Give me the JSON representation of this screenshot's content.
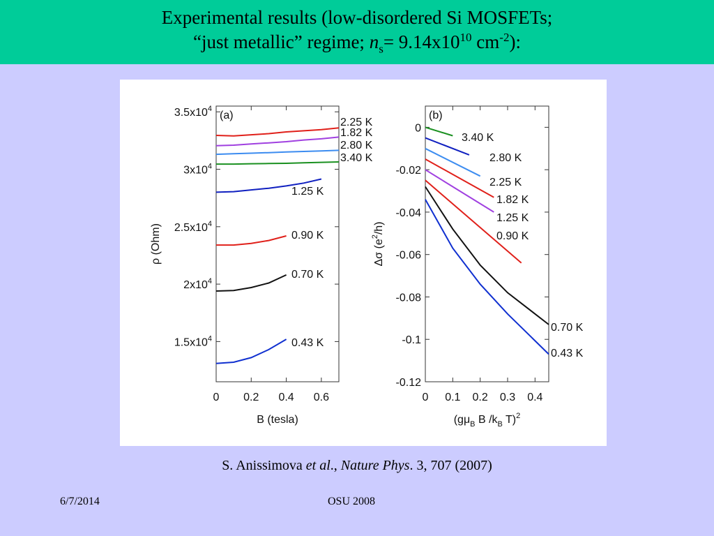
{
  "slide": {
    "title_line1": "Experimental results (low-disordered Si MOSFETs;",
    "title_line2_prefix": "“just metallic” regime; ",
    "title_ns_n": "n",
    "title_ns_sub": "s",
    "title_line2_mid": "= 9.14x10",
    "title_exp10": "10",
    "title_unit": " cm",
    "title_unit_exp": "-2",
    "title_line2_end": "):",
    "citation_author": "S. Anissimova ",
    "citation_etal": "et al",
    "citation_comma": "., ",
    "citation_journal": "Nature Phys",
    "citation_rest": ". 3, 707 (2007)",
    "footer_date": "6/7/2014",
    "footer_center": "OSU 2008",
    "colors": {
      "background": "#ccccff",
      "title_bar": "#00cc99"
    }
  },
  "chart_data": [
    {
      "type": "line",
      "panel_label": "(a)",
      "xlabel": "B (tesla)",
      "ylabel": "ρ (Ohm)",
      "xlim": [
        0,
        0.7
      ],
      "ylim": [
        11500,
        35500
      ],
      "x_ticks": [
        "0",
        "0.2",
        "0.4",
        "0.6"
      ],
      "x_tick_values": [
        0,
        0.2,
        0.4,
        0.6
      ],
      "y_ticks": [
        "1.5x10^4",
        "2x10^4",
        "2.5x10^4",
        "3x10^4",
        "3.5x10^4"
      ],
      "y_tick_values": [
        15000,
        20000,
        25000,
        30000,
        35000
      ],
      "series": [
        {
          "name": "2.25 K",
          "color": "#e0201a",
          "x": [
            0,
            0.1,
            0.2,
            0.3,
            0.4,
            0.5,
            0.6,
            0.7
          ],
          "y": [
            32950,
            32900,
            33000,
            33100,
            33250,
            33350,
            33450,
            33600
          ]
        },
        {
          "name": "1.82 K",
          "color": "#a040e0",
          "x": [
            0,
            0.1,
            0.2,
            0.3,
            0.4,
            0.5,
            0.6,
            0.7
          ],
          "y": [
            32050,
            32100,
            32200,
            32300,
            32400,
            32550,
            32650,
            32800
          ]
        },
        {
          "name": "2.80 K",
          "color": "#3c8cf0",
          "x": [
            0,
            0.1,
            0.2,
            0.3,
            0.4,
            0.5,
            0.6,
            0.7
          ],
          "y": [
            31300,
            31350,
            31400,
            31450,
            31500,
            31550,
            31600,
            31650
          ]
        },
        {
          "name": "3.40 K",
          "color": "#1a9020",
          "x": [
            0,
            0.1,
            0.2,
            0.3,
            0.4,
            0.5,
            0.6,
            0.7
          ],
          "y": [
            30450,
            30450,
            30480,
            30500,
            30520,
            30560,
            30600,
            30640
          ]
        },
        {
          "name": "1.25 K",
          "color": "#1020c0",
          "x": [
            0,
            0.1,
            0.2,
            0.3,
            0.4,
            0.5,
            0.6
          ],
          "y": [
            28000,
            28050,
            28200,
            28350,
            28550,
            28800,
            29150
          ]
        },
        {
          "name": "0.90 K",
          "color": "#e0201a",
          "x": [
            0,
            0.1,
            0.2,
            0.3,
            0.4
          ],
          "y": [
            23400,
            23400,
            23550,
            23800,
            24200
          ]
        },
        {
          "name": "0.70 K",
          "color": "#111111",
          "x": [
            0,
            0.1,
            0.2,
            0.3,
            0.4
          ],
          "y": [
            19400,
            19450,
            19700,
            20100,
            20800
          ]
        },
        {
          "name": "0.43 K",
          "color": "#1030d0",
          "x": [
            0,
            0.1,
            0.2,
            0.3,
            0.4
          ],
          "y": [
            13100,
            13200,
            13600,
            14300,
            15200
          ]
        }
      ]
    },
    {
      "type": "line",
      "panel_label": "(b)",
      "xlabel": "(gμ_B B /k_B T)^2",
      "ylabel": "Δσ (e^2/h)",
      "xlim": [
        0,
        0.45
      ],
      "ylim": [
        -0.12,
        0.01
      ],
      "x_ticks": [
        "0",
        "0.1",
        "0.2",
        "0.3",
        "0.4"
      ],
      "x_tick_values": [
        0,
        0.1,
        0.2,
        0.3,
        0.4
      ],
      "y_ticks": [
        "0",
        "-0.02",
        "-0.04",
        "-0.06",
        "-0.08",
        "-0.1",
        "-0.12"
      ],
      "y_tick_values": [
        0,
        -0.02,
        -0.04,
        -0.06,
        -0.08,
        -0.1,
        -0.12
      ],
      "series": [
        {
          "name": "3.40 K",
          "color": "#1a9020",
          "x": [
            0,
            0.1
          ],
          "y": [
            0,
            -0.004
          ]
        },
        {
          "name": "2.80 K",
          "color": "#1020c0",
          "x": [
            0,
            0.16
          ],
          "y": [
            -0.005,
            -0.013
          ]
        },
        {
          "name": "2.25 K",
          "color": "#3c8cf0",
          "x": [
            0,
            0.2
          ],
          "y": [
            -0.01,
            -0.023
          ]
        },
        {
          "name": "1.82 K",
          "color": "#e0201a",
          "x": [
            0,
            0.25
          ],
          "y": [
            -0.015,
            -0.033
          ]
        },
        {
          "name": "1.25 K",
          "color": "#a040e0",
          "x": [
            0,
            0.25
          ],
          "y": [
            -0.02,
            -0.04
          ]
        },
        {
          "name": "0.90 K",
          "color": "#e0201a",
          "x": [
            0,
            0.35
          ],
          "y": [
            -0.025,
            -0.064
          ]
        },
        {
          "name": "0.70 K",
          "color": "#111111",
          "x": [
            0,
            0.1,
            0.2,
            0.3,
            0.45
          ],
          "y": [
            -0.028,
            -0.048,
            -0.065,
            -0.078,
            -0.093
          ]
        },
        {
          "name": "0.43 K",
          "color": "#1030d0",
          "x": [
            0,
            0.1,
            0.2,
            0.3,
            0.45
          ],
          "y": [
            -0.034,
            -0.057,
            -0.074,
            -0.088,
            -0.107
          ]
        }
      ]
    }
  ]
}
